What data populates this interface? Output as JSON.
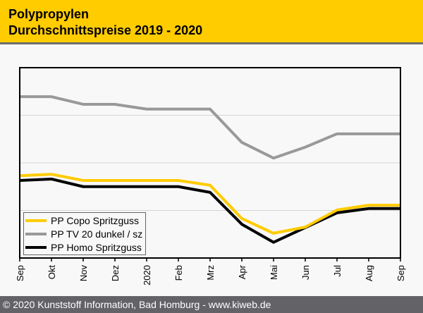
{
  "header": {
    "title_line1": "Polypropylen",
    "title_line2": "Durchschnittspreise 2019 - 2020"
  },
  "footer": {
    "text": "© 2020 Kunststoff Information, Bad Homburg - www.kiweb.de"
  },
  "colors": {
    "header_bg": "#ffcc00",
    "footer_bg": "#636367",
    "copo": "#ffcc00",
    "tv20": "#999999",
    "homo": "#000000"
  },
  "chart_data": {
    "type": "line",
    "title": "Polypropylen Durchschnittspreise 2019 - 2020",
    "xlabel": "",
    "ylabel": "",
    "y_unit_note": "no y-axis tick labels shown; values in relative gridline units (0 = bottom axis, 4 = top of plot)",
    "ylim": [
      0,
      4
    ],
    "y_gridlines": [
      1,
      2,
      3
    ],
    "grid": true,
    "legend_position": "bottom-left",
    "categories": [
      "Sep",
      "Okt",
      "Nov",
      "Dez",
      "2020",
      "Feb",
      "Mrz",
      "Apr",
      "Mai",
      "Jun",
      "Jul",
      "Aug",
      "Sep"
    ],
    "series": [
      {
        "name": "PP Copo Spritzguss",
        "color": "#ffcc00",
        "values": [
          1.73,
          1.76,
          1.63,
          1.63,
          1.63,
          1.63,
          1.53,
          0.83,
          0.52,
          0.65,
          1.01,
          1.11,
          1.11
        ]
      },
      {
        "name": "PP TV 20 dunkel / sz",
        "color": "#999999",
        "values": [
          3.39,
          3.39,
          3.23,
          3.23,
          3.13,
          3.13,
          3.13,
          2.43,
          2.1,
          2.33,
          2.61,
          2.61,
          2.61
        ]
      },
      {
        "name": "PP Homo Spritzguss",
        "color": "#000000",
        "values": [
          1.63,
          1.66,
          1.5,
          1.5,
          1.5,
          1.5,
          1.38,
          0.71,
          0.33,
          0.64,
          0.95,
          1.04,
          1.04
        ]
      }
    ]
  }
}
